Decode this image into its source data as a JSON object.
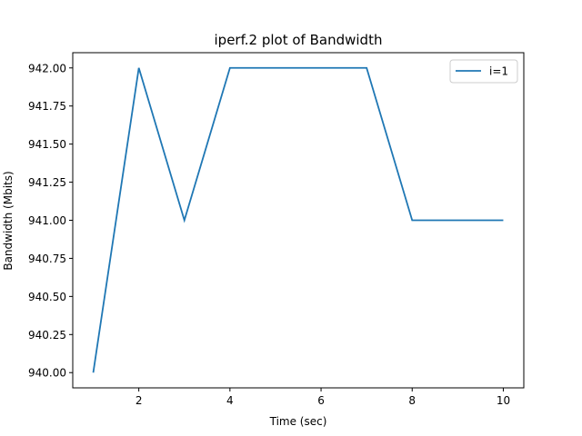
{
  "chart_data": {
    "type": "line",
    "title": "iperf.2 plot of Bandwidth",
    "xlabel": "Time (sec)",
    "ylabel": "Bandwidth (Mbits)",
    "xlim": [
      0.55,
      10.45
    ],
    "ylim": [
      939.9,
      942.1
    ],
    "xticks": [
      2,
      4,
      6,
      8,
      10
    ],
    "xtick_labels": [
      "2",
      "4",
      "6",
      "8",
      "10"
    ],
    "yticks": [
      940.0,
      940.25,
      940.5,
      940.75,
      941.0,
      941.25,
      941.5,
      941.75,
      942.0
    ],
    "ytick_labels": [
      "940.00",
      "940.25",
      "940.50",
      "940.75",
      "941.00",
      "941.25",
      "941.50",
      "941.75",
      "942.00"
    ],
    "grid": false,
    "legend_position": "top-right",
    "series": [
      {
        "name": "i=1",
        "color": "#1f77b4",
        "x": [
          1,
          2,
          3,
          4,
          5,
          6,
          7,
          8,
          9,
          10
        ],
        "y": [
          940.0,
          942.0,
          941.0,
          942.0,
          942.0,
          942.0,
          942.0,
          941.0,
          941.0,
          941.0
        ]
      }
    ]
  }
}
